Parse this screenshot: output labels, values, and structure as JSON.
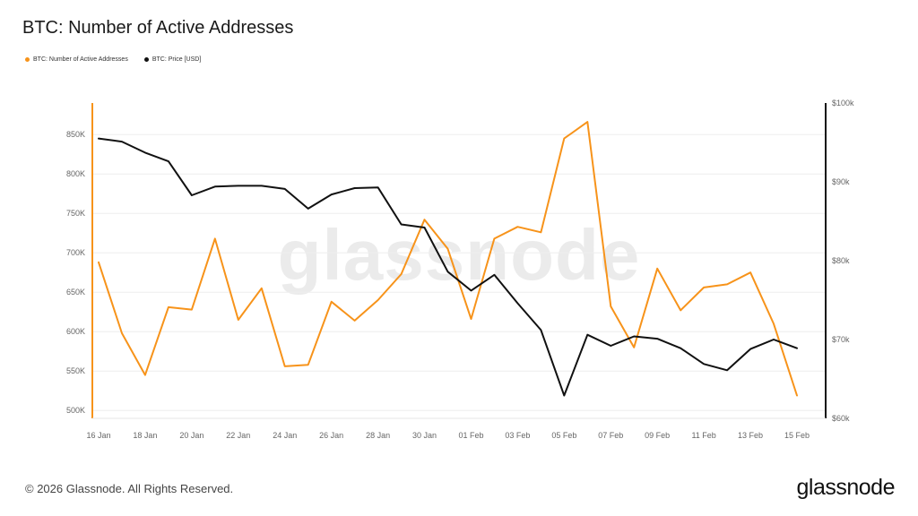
{
  "header": {
    "title": "BTC: Number of Active Addresses"
  },
  "legend": {
    "items": [
      {
        "label": "BTC: Number of Active Addresses",
        "color": "#f7931a"
      },
      {
        "label": "BTC: Price [USD]",
        "color": "#111111"
      }
    ]
  },
  "watermark": "glassnode",
  "footer": {
    "copyright": "© 2026 Glassnode. All Rights Reserved.",
    "brand": "glassnode"
  },
  "chart_data": {
    "type": "line",
    "title": "BTC: Number of Active Addresses",
    "x": [
      "16 Jan",
      "17 Jan",
      "18 Jan",
      "19 Jan",
      "20 Jan",
      "21 Jan",
      "22 Jan",
      "23 Jan",
      "24 Jan",
      "25 Jan",
      "26 Jan",
      "27 Jan",
      "28 Jan",
      "29 Jan",
      "30 Jan",
      "31 Jan",
      "01 Feb",
      "02 Feb",
      "03 Feb",
      "04 Feb",
      "05 Feb",
      "06 Feb",
      "07 Feb",
      "08 Feb",
      "09 Feb",
      "10 Feb",
      "11 Feb",
      "12 Feb",
      "13 Feb",
      "14 Feb",
      "15 Feb"
    ],
    "x_tick_labels": [
      "16 Jan",
      "18 Jan",
      "20 Jan",
      "22 Jan",
      "24 Jan",
      "26 Jan",
      "28 Jan",
      "30 Jan",
      "01 Feb",
      "03 Feb",
      "05 Feb",
      "07 Feb",
      "09 Feb",
      "11 Feb",
      "13 Feb",
      "15 Feb"
    ],
    "series": [
      {
        "name": "BTC: Number of Active Addresses",
        "axis": "left",
        "color": "#f7931a",
        "values": [
          688000,
          598000,
          545000,
          631000,
          628000,
          718000,
          615000,
          655000,
          556000,
          558000,
          638000,
          614000,
          640000,
          673000,
          742000,
          705000,
          616000,
          718000,
          733000,
          726000,
          845000,
          866000,
          632000,
          580000,
          680000,
          627000,
          656000,
          660000,
          675000,
          610000,
          519000
        ]
      },
      {
        "name": "BTC: Price [USD]",
        "axis": "right",
        "color": "#111111",
        "values": [
          95500,
          95100,
          93700,
          92600,
          88300,
          89400,
          89500,
          89500,
          89100,
          86600,
          88400,
          89200,
          89300,
          84600,
          84200,
          78600,
          76200,
          78200,
          74600,
          71200,
          62900,
          70600,
          69200,
          70400,
          70100,
          68900,
          66900,
          66100,
          68800,
          70000,
          68900
        ]
      }
    ],
    "y_left": {
      "ticks": [
        500000,
        550000,
        600000,
        650000,
        700000,
        750000,
        800000,
        850000
      ],
      "tick_labels": [
        "500K",
        "550K",
        "600K",
        "650K",
        "700K",
        "750K",
        "800K",
        "850K"
      ],
      "ylim": [
        490000,
        890000
      ]
    },
    "y_right": {
      "ticks": [
        60000,
        70000,
        80000,
        90000,
        100000
      ],
      "tick_labels": [
        "$60k",
        "$70k",
        "$80k",
        "$90k",
        "$100k"
      ],
      "ylim": [
        60000,
        100000
      ]
    },
    "grid": "horizontal",
    "legend_position": "top-left"
  }
}
